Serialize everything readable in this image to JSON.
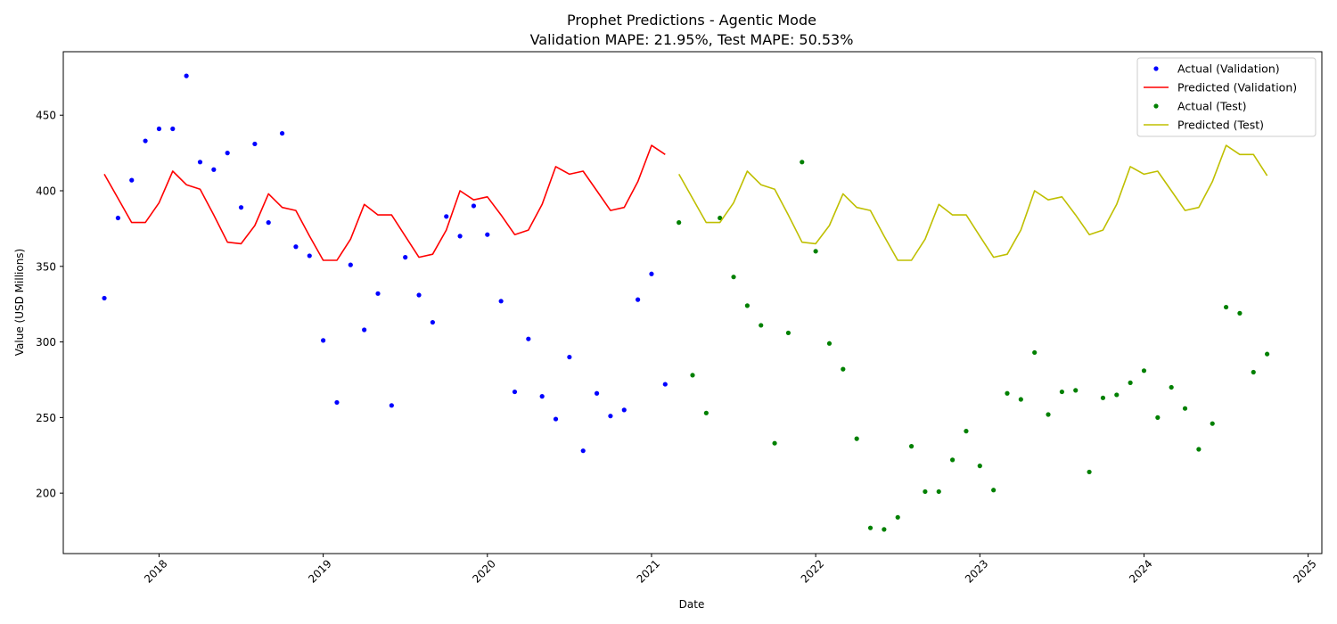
{
  "chart_data": {
    "type": "line",
    "title": "Prophet Predictions - Agentic Mode",
    "subtitle": "Validation MAPE: 21.95%, Test MAPE: 50.53%",
    "xlabel": "Date",
    "ylabel": "Value (USD Millions)",
    "xlim": [
      "2017-06-01",
      "2025-02-01"
    ],
    "ylim": [
      160,
      492
    ],
    "x_ticks": [
      "2018",
      "2019",
      "2020",
      "2021",
      "2022",
      "2023",
      "2024",
      "2025"
    ],
    "y_ticks": [
      200,
      250,
      300,
      350,
      400,
      450
    ],
    "grid": false,
    "legend_position": "top-right",
    "series": [
      {
        "name": "Actual (Validation)",
        "kind": "scatter",
        "color": "#0000ff",
        "x": [
          "2017-09",
          "2017-10",
          "2017-11",
          "2017-12",
          "2018-01",
          "2018-02",
          "2018-03",
          "2018-04",
          "2018-05",
          "2018-06",
          "2018-07",
          "2018-08",
          "2018-09",
          "2018-10",
          "2018-11",
          "2018-12",
          "2019-01",
          "2019-02",
          "2019-03",
          "2019-04",
          "2019-05",
          "2019-06",
          "2019-07",
          "2019-08",
          "2019-09",
          "2019-10",
          "2019-11",
          "2019-12",
          "2020-01",
          "2020-02",
          "2020-03",
          "2020-04",
          "2020-05",
          "2020-06",
          "2020-07",
          "2020-08",
          "2020-09",
          "2020-10",
          "2020-11",
          "2020-12",
          "2021-01",
          "2021-02"
        ],
        "y": [
          329,
          382,
          407,
          433,
          441,
          441,
          476,
          419,
          414,
          425,
          389,
          431,
          379,
          438,
          363,
          357,
          301,
          260,
          351,
          308,
          332,
          258,
          356,
          331,
          313,
          383,
          370,
          390,
          371,
          327,
          267,
          302,
          264,
          249,
          290,
          228,
          266,
          251,
          255,
          328,
          345,
          272
        ]
      },
      {
        "name": "Predicted (Validation)",
        "kind": "line",
        "color": "#ff0000",
        "x": [
          "2017-09",
          "2017-10",
          "2017-11",
          "2017-12",
          "2018-01",
          "2018-02",
          "2018-03",
          "2018-04",
          "2018-05",
          "2018-06",
          "2018-07",
          "2018-08",
          "2018-09",
          "2018-10",
          "2018-11",
          "2018-12",
          "2019-01",
          "2019-02",
          "2019-03",
          "2019-04",
          "2019-05",
          "2019-06",
          "2019-07",
          "2019-08",
          "2019-09",
          "2019-10",
          "2019-11",
          "2019-12",
          "2020-01",
          "2020-02",
          "2020-03",
          "2020-04",
          "2020-05",
          "2020-06",
          "2020-07",
          "2020-08",
          "2020-09",
          "2020-10",
          "2020-11",
          "2020-12",
          "2021-01",
          "2021-02"
        ],
        "y": [
          411,
          395,
          379,
          379,
          392,
          413,
          404,
          401,
          384,
          366,
          365,
          377,
          398,
          389,
          387,
          370,
          354,
          354,
          368,
          391,
          384,
          384,
          370,
          356,
          358,
          374,
          400,
          394,
          396,
          384,
          371,
          374,
          391,
          416,
          411,
          413,
          400,
          387,
          389,
          406,
          430,
          424
        ]
      },
      {
        "name": "Actual (Test)",
        "kind": "scatter",
        "color": "#008000",
        "x": [
          "2021-03",
          "2021-04",
          "2021-05",
          "2021-06",
          "2021-07",
          "2021-08",
          "2021-09",
          "2021-10",
          "2021-11",
          "2021-12",
          "2022-01",
          "2022-02",
          "2022-03",
          "2022-04",
          "2022-05",
          "2022-06",
          "2022-07",
          "2022-08",
          "2022-09",
          "2022-10",
          "2022-11",
          "2022-12",
          "2023-01",
          "2023-02",
          "2023-03",
          "2023-04",
          "2023-05",
          "2023-06",
          "2023-07",
          "2023-08",
          "2023-09",
          "2023-10",
          "2023-11",
          "2023-12",
          "2024-01",
          "2024-02",
          "2024-03",
          "2024-04",
          "2024-05",
          "2024-06",
          "2024-07",
          "2024-08",
          "2024-09",
          "2024-10"
        ],
        "y": [
          379,
          278,
          253,
          382,
          343,
          324,
          311,
          233,
          306,
          419,
          360,
          299,
          282,
          236,
          177,
          176,
          184,
          231,
          201,
          201,
          222,
          241,
          218,
          202,
          266,
          262,
          293,
          252,
          267,
          268,
          214,
          263,
          265,
          273,
          281,
          250,
          270,
          256,
          229,
          246,
          323,
          319,
          280,
          292
        ]
      },
      {
        "name": "Predicted (Test)",
        "kind": "line",
        "color": "#bfbf00",
        "x": [
          "2021-03",
          "2021-04",
          "2021-05",
          "2021-06",
          "2021-07",
          "2021-08",
          "2021-09",
          "2021-10",
          "2021-11",
          "2021-12",
          "2022-01",
          "2022-02",
          "2022-03",
          "2022-04",
          "2022-05",
          "2022-06",
          "2022-07",
          "2022-08",
          "2022-09",
          "2022-10",
          "2022-11",
          "2022-12",
          "2023-01",
          "2023-02",
          "2023-03",
          "2023-04",
          "2023-05",
          "2023-06",
          "2023-07",
          "2023-08",
          "2023-09",
          "2023-10",
          "2023-11",
          "2023-12",
          "2024-01",
          "2024-02",
          "2024-03",
          "2024-04",
          "2024-05",
          "2024-06",
          "2024-07",
          "2024-08",
          "2024-09",
          "2024-10"
        ],
        "y": [
          411,
          395,
          379,
          379,
          392,
          413,
          404,
          401,
          384,
          366,
          365,
          377,
          398,
          389,
          387,
          370,
          354,
          354,
          368,
          391,
          384,
          384,
          370,
          356,
          358,
          374,
          400,
          394,
          396,
          384,
          371,
          374,
          391,
          416,
          411,
          413,
          400,
          387,
          389,
          406,
          430,
          424,
          424,
          410
        ]
      }
    ]
  }
}
